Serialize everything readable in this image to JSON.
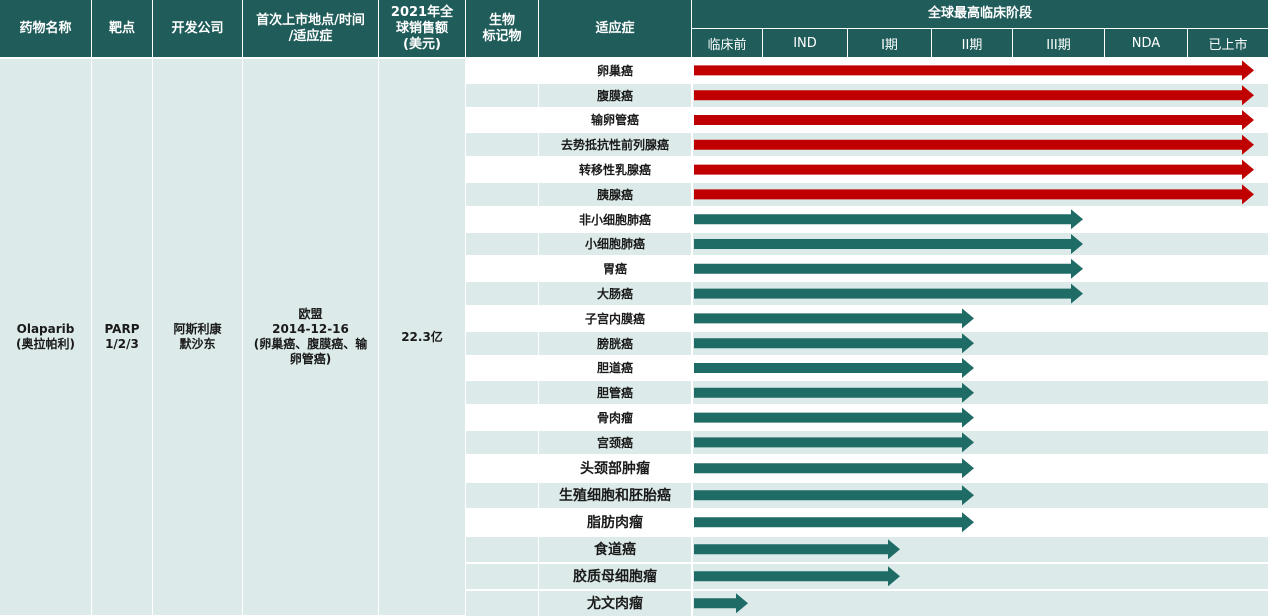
{
  "header": {
    "drug_name": "药物名称",
    "target": "靶点",
    "company": "开发公司",
    "first_launch": "首次上市地点/时间\n/适应症",
    "sales_2021": "2021年全\n球销售额\n(美元)",
    "biomarker": "生物\n标记物",
    "indication": "适应症",
    "phase_group": "全球最高临床阶段",
    "phases": [
      "临床前",
      "IND",
      "I期",
      "II期",
      "III期",
      "NDA",
      "已上市"
    ]
  },
  "drug": {
    "name": "Olaparib\n(奥拉帕利)",
    "target": "PARP\n1/2/3",
    "company": "阿斯利康\n默沙东",
    "first_launch": "欧盟\n2014-12-16\n(卵巢癌、腹膜癌、输\n卵管癌)",
    "sales_2021": "22.3亿"
  },
  "colors": {
    "header_bg": "#1f5c5a",
    "row_light": "#dcebe9",
    "arrow_marketed": "#c00000",
    "arrow_other": "#1f6b66"
  },
  "indications": [
    {
      "name": "卵巢癌",
      "stage": "已上市"
    },
    {
      "name": "腹膜癌",
      "stage": "已上市"
    },
    {
      "name": "输卵管癌",
      "stage": "已上市"
    },
    {
      "name": "去势抵抗性前列腺癌",
      "stage": "已上市"
    },
    {
      "name": "转移性乳腺癌",
      "stage": "已上市"
    },
    {
      "name": "胰腺癌",
      "stage": "已上市"
    },
    {
      "name": "非小细胞肺癌",
      "stage": "III期"
    },
    {
      "name": "小细胞肺癌",
      "stage": "III期"
    },
    {
      "name": "胃癌",
      "stage": "III期"
    },
    {
      "name": "大肠癌",
      "stage": "III期"
    },
    {
      "name": "子宫内膜癌",
      "stage": "II期"
    },
    {
      "name": "膀胱癌",
      "stage": "II期"
    },
    {
      "name": "胆道癌",
      "stage": "II期"
    },
    {
      "name": "胆管癌",
      "stage": "II期"
    },
    {
      "name": "骨肉瘤",
      "stage": "II期"
    },
    {
      "name": "宫颈癌",
      "stage": "II期"
    },
    {
      "name": "头颈部肿瘤",
      "stage": "II期"
    },
    {
      "name": "生殖细胞和胚胎癌",
      "stage": "II期"
    },
    {
      "name": "脂肪肉瘤",
      "stage": "II期"
    },
    {
      "name": "食道癌",
      "stage": "I期"
    },
    {
      "name": "胶质母细胞瘤",
      "stage": "I期"
    },
    {
      "name": "尤文肉瘤",
      "stage": "临床前"
    }
  ]
}
